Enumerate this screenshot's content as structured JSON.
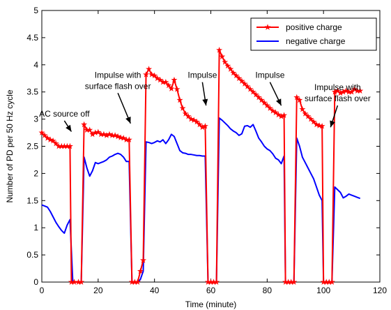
{
  "chart_data": {
    "type": "line",
    "xlabel": "Time (minute)",
    "ylabel": "Number of PD per 50 Hz cycle",
    "xlim": [
      0,
      120
    ],
    "ylim": [
      0,
      5
    ],
    "xticks": [
      0,
      20,
      40,
      60,
      80,
      100,
      120
    ],
    "yticks": [
      0,
      0.5,
      1,
      1.5,
      2,
      2.5,
      3,
      3.5,
      4,
      4.5,
      5
    ],
    "grid": false,
    "legend_position": "top-right",
    "series": [
      {
        "name": "positive charge",
        "color": "#ff0000",
        "marker": "star",
        "points": [
          [
            0,
            2.75
          ],
          [
            1,
            2.7
          ],
          [
            2,
            2.65
          ],
          [
            3,
            2.62
          ],
          [
            4,
            2.6
          ],
          [
            5,
            2.55
          ],
          [
            6,
            2.5
          ],
          [
            7,
            2.5
          ],
          [
            8,
            2.5
          ],
          [
            9,
            2.5
          ],
          [
            10,
            2.5
          ],
          [
            10.5,
            0
          ],
          [
            11.5,
            0
          ],
          [
            13,
            0
          ],
          [
            14,
            0
          ],
          [
            15,
            2.9
          ],
          [
            16,
            2.8
          ],
          [
            17,
            2.8
          ],
          [
            18,
            2.72
          ],
          [
            19,
            2.75
          ],
          [
            20,
            2.76
          ],
          [
            21,
            2.72
          ],
          [
            22,
            2.72
          ],
          [
            23,
            2.7
          ],
          [
            24,
            2.72
          ],
          [
            25,
            2.7
          ],
          [
            26,
            2.7
          ],
          [
            27,
            2.68
          ],
          [
            28,
            2.66
          ],
          [
            29,
            2.65
          ],
          [
            30,
            2.62
          ],
          [
            31,
            2.62
          ],
          [
            32,
            0
          ],
          [
            33,
            0
          ],
          [
            34,
            0
          ],
          [
            35,
            0.2
          ],
          [
            36,
            0.4
          ],
          [
            37,
            3.82
          ],
          [
            38,
            3.92
          ],
          [
            39,
            3.82
          ],
          [
            40,
            3.8
          ],
          [
            41,
            3.75
          ],
          [
            42,
            3.72
          ],
          [
            43,
            3.68
          ],
          [
            44,
            3.68
          ],
          [
            45,
            3.62
          ],
          [
            46,
            3.56
          ],
          [
            47,
            3.72
          ],
          [
            48,
            3.55
          ],
          [
            49,
            3.35
          ],
          [
            50,
            3.2
          ],
          [
            51,
            3.1
          ],
          [
            52,
            3.05
          ],
          [
            53,
            3.0
          ],
          [
            54,
            2.98
          ],
          [
            55,
            2.95
          ],
          [
            56,
            2.9
          ],
          [
            57,
            2.85
          ],
          [
            58,
            2.87
          ],
          [
            59,
            0
          ],
          [
            60,
            0
          ],
          [
            61,
            0
          ],
          [
            62,
            0
          ],
          [
            63,
            4.27
          ],
          [
            64,
            4.15
          ],
          [
            65,
            4.05
          ],
          [
            66,
            3.98
          ],
          [
            67,
            3.92
          ],
          [
            68,
            3.85
          ],
          [
            69,
            3.8
          ],
          [
            70,
            3.75
          ],
          [
            71,
            3.7
          ],
          [
            72,
            3.65
          ],
          [
            73,
            3.6
          ],
          [
            74,
            3.55
          ],
          [
            75,
            3.5
          ],
          [
            76,
            3.45
          ],
          [
            77,
            3.4
          ],
          [
            78,
            3.35
          ],
          [
            79,
            3.3
          ],
          [
            80,
            3.25
          ],
          [
            81,
            3.2
          ],
          [
            82,
            3.15
          ],
          [
            83,
            3.12
          ],
          [
            84,
            3.08
          ],
          [
            85,
            3.05
          ],
          [
            86,
            3.07
          ],
          [
            86.5,
            0
          ],
          [
            87.5,
            0
          ],
          [
            88.5,
            0
          ],
          [
            89.5,
            0
          ],
          [
            90.5,
            3.4
          ],
          [
            91.5,
            3.35
          ],
          [
            92.5,
            3.18
          ],
          [
            93.5,
            3.1
          ],
          [
            94.5,
            3.05
          ],
          [
            95.5,
            3.0
          ],
          [
            96.5,
            2.95
          ],
          [
            97.5,
            2.9
          ],
          [
            98.5,
            2.88
          ],
          [
            99.5,
            2.87
          ],
          [
            100,
            0
          ],
          [
            101,
            0
          ],
          [
            102,
            0
          ],
          [
            103,
            0
          ],
          [
            104,
            3.5
          ],
          [
            105,
            3.52
          ],
          [
            106,
            3.48
          ],
          [
            107,
            3.5
          ],
          [
            108,
            3.52
          ],
          [
            109,
            3.5
          ],
          [
            110,
            3.5
          ],
          [
            111,
            3.55
          ],
          [
            112,
            3.52
          ],
          [
            113,
            3.52
          ]
        ]
      },
      {
        "name": "negative charge",
        "color": "#0000ff",
        "marker": "none",
        "points": [
          [
            0,
            1.42
          ],
          [
            1,
            1.4
          ],
          [
            2,
            1.38
          ],
          [
            3,
            1.3
          ],
          [
            4,
            1.2
          ],
          [
            5,
            1.1
          ],
          [
            6,
            1.02
          ],
          [
            7,
            0.95
          ],
          [
            8,
            0.9
          ],
          [
            9,
            1.05
          ],
          [
            10,
            1.15
          ],
          [
            11,
            0
          ],
          [
            13,
            0
          ],
          [
            14,
            0
          ],
          [
            15,
            2.3
          ],
          [
            16,
            2.1
          ],
          [
            17,
            1.95
          ],
          [
            18,
            2.05
          ],
          [
            19,
            2.2
          ],
          [
            20,
            2.18
          ],
          [
            21,
            2.2
          ],
          [
            22,
            2.22
          ],
          [
            23,
            2.25
          ],
          [
            24,
            2.3
          ],
          [
            25,
            2.32
          ],
          [
            26,
            2.35
          ],
          [
            27,
            2.37
          ],
          [
            28,
            2.35
          ],
          [
            29,
            2.3
          ],
          [
            30,
            2.22
          ],
          [
            31,
            2.22
          ],
          [
            32,
            0
          ],
          [
            33,
            0
          ],
          [
            34,
            0
          ],
          [
            35,
            0.05
          ],
          [
            36,
            0.2
          ],
          [
            37,
            2.58
          ],
          [
            38,
            2.57
          ],
          [
            39,
            2.55
          ],
          [
            40,
            2.57
          ],
          [
            41,
            2.6
          ],
          [
            42,
            2.58
          ],
          [
            43,
            2.62
          ],
          [
            44,
            2.55
          ],
          [
            45,
            2.62
          ],
          [
            46,
            2.72
          ],
          [
            47,
            2.68
          ],
          [
            48,
            2.55
          ],
          [
            49,
            2.42
          ],
          [
            50,
            2.38
          ],
          [
            51,
            2.37
          ],
          [
            52,
            2.35
          ],
          [
            53,
            2.35
          ],
          [
            54,
            2.34
          ],
          [
            55,
            2.33
          ],
          [
            56,
            2.33
          ],
          [
            57,
            2.32
          ],
          [
            58,
            2.32
          ],
          [
            59,
            0
          ],
          [
            60,
            0
          ],
          [
            61,
            0
          ],
          [
            62,
            0
          ],
          [
            63,
            3.02
          ],
          [
            64,
            2.98
          ],
          [
            65,
            2.93
          ],
          [
            66,
            2.88
          ],
          [
            67,
            2.82
          ],
          [
            68,
            2.78
          ],
          [
            69,
            2.75
          ],
          [
            70,
            2.7
          ],
          [
            71,
            2.73
          ],
          [
            72,
            2.87
          ],
          [
            73,
            2.88
          ],
          [
            74,
            2.85
          ],
          [
            75,
            2.9
          ],
          [
            76,
            2.78
          ],
          [
            77,
            2.65
          ],
          [
            78,
            2.58
          ],
          [
            79,
            2.5
          ],
          [
            80,
            2.45
          ],
          [
            81,
            2.42
          ],
          [
            82,
            2.36
          ],
          [
            83,
            2.28
          ],
          [
            84,
            2.25
          ],
          [
            85,
            2.18
          ],
          [
            86,
            2.32
          ],
          [
            86.5,
            0
          ],
          [
            87.5,
            0
          ],
          [
            88.5,
            0
          ],
          [
            89.5,
            0
          ],
          [
            90.5,
            2.65
          ],
          [
            91.5,
            2.5
          ],
          [
            92.5,
            2.3
          ],
          [
            93.5,
            2.2
          ],
          [
            94.5,
            2.1
          ],
          [
            95.5,
            2.0
          ],
          [
            96.5,
            1.9
          ],
          [
            97.5,
            1.75
          ],
          [
            98.5,
            1.6
          ],
          [
            99.5,
            1.5
          ],
          [
            100,
            0
          ],
          [
            101,
            0
          ],
          [
            102,
            0
          ],
          [
            103,
            0
          ],
          [
            104,
            1.75
          ],
          [
            105,
            1.7
          ],
          [
            106,
            1.65
          ],
          [
            107,
            1.55
          ],
          [
            108,
            1.58
          ],
          [
            109,
            1.62
          ],
          [
            110,
            1.6
          ],
          [
            111,
            1.58
          ],
          [
            112,
            1.56
          ],
          [
            113,
            1.54
          ]
        ]
      }
    ],
    "annotations": [
      {
        "lines": [
          "AC source off"
        ],
        "arrow_from": [
          8,
          2.97
        ],
        "arrow_to": [
          10.5,
          2.77
        ]
      },
      {
        "lines": [
          "Impulse with",
          "surface flash over"
        ],
        "arrow_from": [
          27,
          3.48
        ],
        "arrow_to": [
          31.5,
          2.92
        ]
      },
      {
        "lines": [
          "Impulse"
        ],
        "arrow_from": [
          57,
          3.68
        ],
        "arrow_to": [
          58.3,
          3.25
        ]
      },
      {
        "lines": [
          "Impulse"
        ],
        "arrow_from": [
          81,
          3.68
        ],
        "arrow_to": [
          85,
          3.25
        ]
      },
      {
        "lines": [
          "Impulse with",
          "surface flash over"
        ],
        "arrow_from": [
          105,
          3.25
        ],
        "arrow_to": [
          102.5,
          2.85
        ]
      }
    ]
  }
}
